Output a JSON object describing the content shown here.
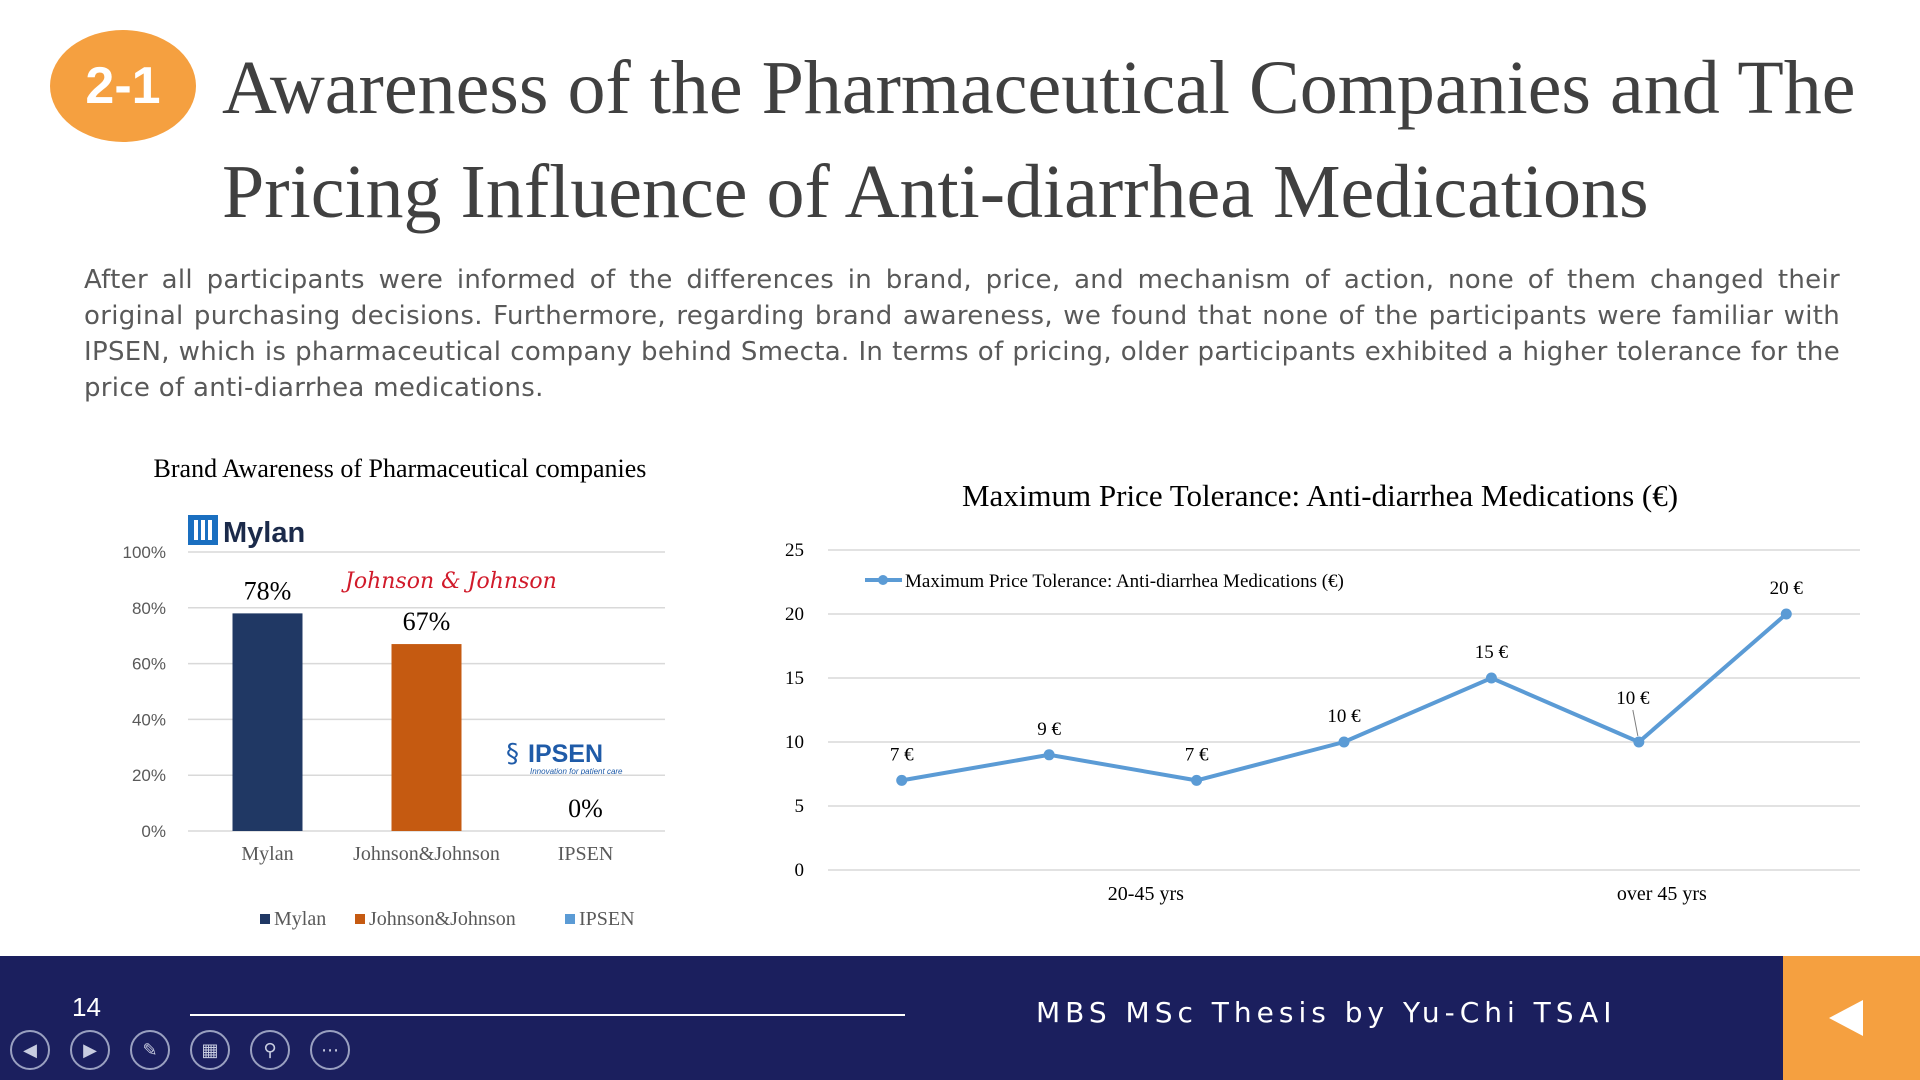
{
  "header": {
    "badge": "2-1",
    "title_line1": "Awareness of the Pharmaceutical Companies and The",
    "title_line2": "Pricing Influence of Anti-diarrhea Medications"
  },
  "body_text": "After all participants were informed of the differences in brand, price, and mechanism of action, none of them changed their original purchasing decisions. Furthermore, regarding brand awareness, we found that none of the participants were familiar with IPSEN, which is pharmaceutical company behind Smecta. In terms of pricing, older participants exhibited a higher tolerance for the price of anti-diarrhea medications.",
  "logos": {
    "mylan": "Mylan",
    "jnj": "Johnson & Johnson",
    "ipsen": "IPSEN",
    "ipsen_tagline": "Innovation for patient care"
  },
  "chart_data": [
    {
      "type": "bar",
      "title": "Brand Awareness  of Pharmaceutical  companies",
      "categories": [
        "Mylan",
        "Johnson&Johnson",
        "IPSEN"
      ],
      "values": [
        78,
        67,
        0
      ],
      "data_labels": [
        "78%",
        "67%",
        "0%"
      ],
      "yticks": [
        "0%",
        "20%",
        "40%",
        "60%",
        "80%",
        "100%"
      ],
      "ylim": [
        0,
        100
      ],
      "colors": [
        "#203864",
        "#C55A11",
        "#5B9BD5"
      ],
      "legend": [
        "Mylan",
        "Johnson&Johnson",
        "IPSEN"
      ],
      "legend_position": "bottom",
      "grid": true
    },
    {
      "type": "line",
      "title": "Maximum Price Tolerance: Anti-diarrhea Medications (€)",
      "series": [
        {
          "name": "Maximum Price Tolerance: Anti-diarrhea Medications (€)",
          "values": [
            7,
            9,
            7,
            10,
            15,
            10,
            20
          ],
          "labels": [
            "7 €",
            "9 €",
            "7 €",
            "10 €",
            "15 €",
            "10 €",
            "20 €"
          ]
        }
      ],
      "groups": [
        {
          "label": "20-45 yrs",
          "points": [
            0,
            1,
            2,
            3
          ]
        },
        {
          "label": "over 45 yrs",
          "points": [
            4,
            5,
            6
          ]
        }
      ],
      "yticks": [
        "0",
        "5",
        "10",
        "15",
        "20",
        "25"
      ],
      "ylim": [
        0,
        25
      ],
      "color": "#5B9BD5",
      "legend_position": "top-left",
      "grid": true
    }
  ],
  "footer": {
    "page": "14",
    "credit": "MBS MSc Thesis by Yu-Chi TSAI",
    "controls": [
      "previous-icon",
      "next-icon",
      "pen-icon",
      "slides-icon",
      "zoom-icon",
      "more-icon"
    ]
  }
}
